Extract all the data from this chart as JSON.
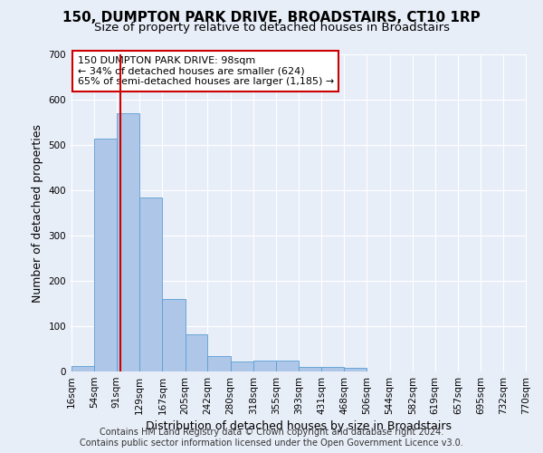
{
  "title": "150, DUMPTON PARK DRIVE, BROADSTAIRS, CT10 1RP",
  "subtitle": "Size of property relative to detached houses in Broadstairs",
  "xlabel": "Distribution of detached houses by size in Broadstairs",
  "ylabel": "Number of detached properties",
  "footer_line1": "Contains HM Land Registry data © Crown copyright and database right 2024.",
  "footer_line2": "Contains public sector information licensed under the Open Government Licence v3.0.",
  "bar_edges": [
    16,
    54,
    91,
    129,
    167,
    205,
    242,
    280,
    318,
    355,
    393,
    431,
    468,
    506,
    544,
    582,
    619,
    657,
    695,
    732,
    770
  ],
  "bar_heights": [
    13,
    515,
    570,
    385,
    160,
    82,
    35,
    22,
    25,
    25,
    10,
    10,
    8,
    0,
    0,
    0,
    0,
    0,
    0,
    0
  ],
  "bar_color": "#aec6e8",
  "bar_edgecolor": "#5a9fd4",
  "vline_x": 98,
  "vline_color": "#cc0000",
  "annotation_text": "150 DUMPTON PARK DRIVE: 98sqm\n← 34% of detached houses are smaller (624)\n65% of semi-detached houses are larger (1,185) →",
  "annotation_box_color": "#cc0000",
  "ylim": [
    0,
    700
  ],
  "yticks": [
    0,
    100,
    200,
    300,
    400,
    500,
    600,
    700
  ],
  "bg_color": "#e8eef8",
  "grid_color": "#ffffff",
  "title_fontsize": 11,
  "subtitle_fontsize": 9.5,
  "axis_label_fontsize": 9,
  "tick_fontsize": 7.5,
  "annotation_fontsize": 8,
  "footer_fontsize": 7
}
